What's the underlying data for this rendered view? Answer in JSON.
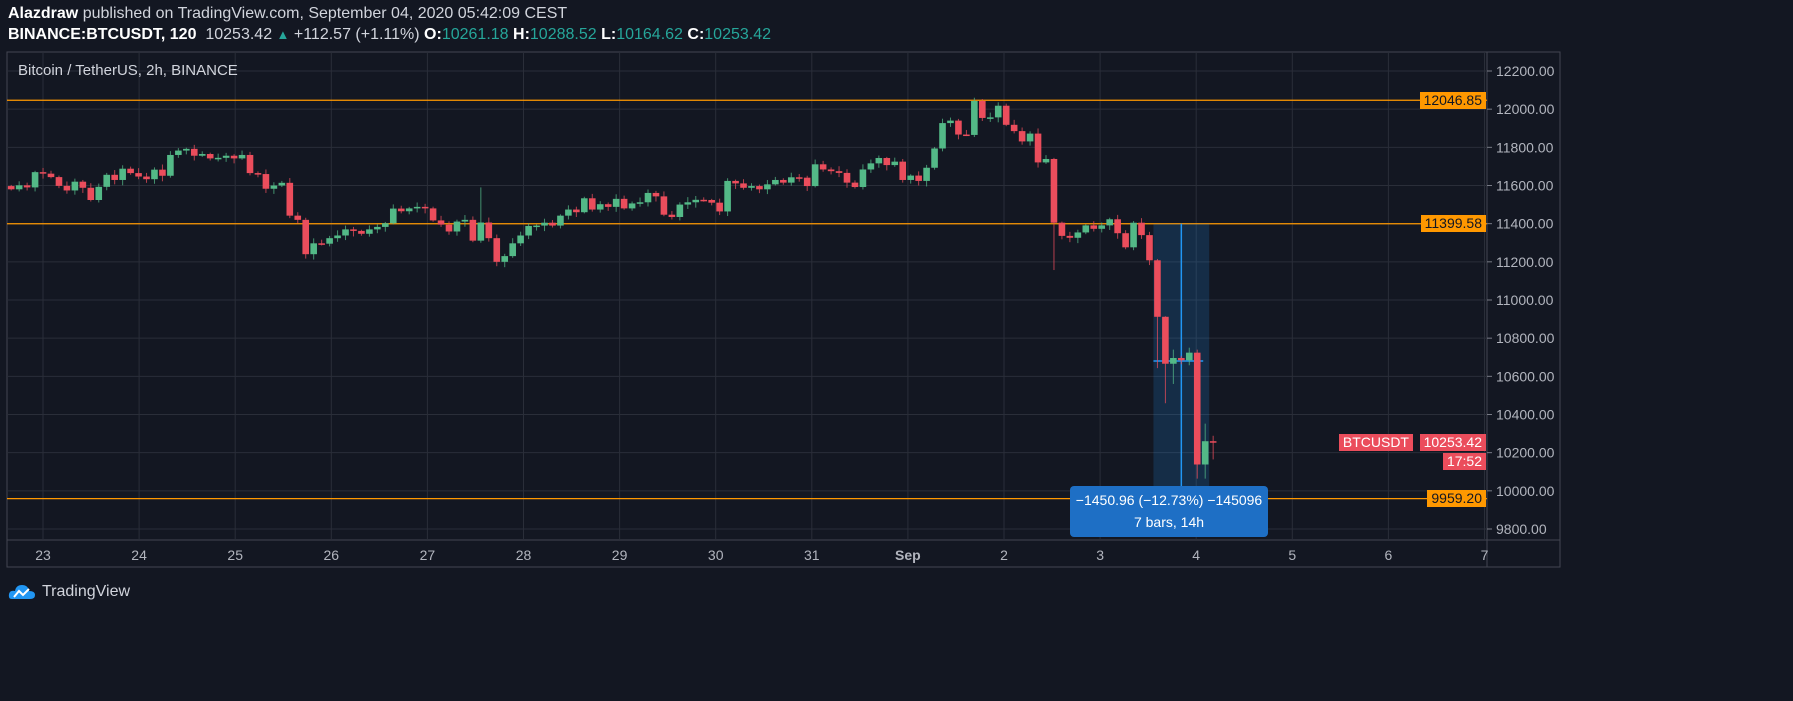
{
  "header": {
    "author": "Alazdraw",
    "published_text": "published on TradingView.com, September 04, 2020 05:42:09 CEST",
    "symbol": "BINANCE:BTCUSDT, 120",
    "last": "10253.42",
    "change": "+112.57 (+1.11%)",
    "o_label": "O:",
    "o_value": "10261.18",
    "h_label": "H:",
    "h_value": "10288.52",
    "l_label": "L:",
    "l_value": "10164.62",
    "c_label": "C:",
    "c_value": "10253.42"
  },
  "pane_title": "Bitcoin / TetherUS, 2h, BINANCE",
  "footer": {
    "brand": "TradingView"
  },
  "colors": {
    "up": "#53b987",
    "down": "#eb4d5c",
    "level": "#ff9800",
    "measure": "#2196f3",
    "grid": "#2a2e39",
    "bg": "#131722"
  },
  "chart_data": {
    "type": "candlestick",
    "title": "Bitcoin / TetherUS, 2h, BINANCE",
    "interval": "2h",
    "first_open": 11597,
    "closes": [
      11580,
      11601,
      11590,
      11670,
      11662,
      11644,
      11598,
      11574,
      11620,
      11588,
      11524,
      11593,
      11656,
      11629,
      11688,
      11665,
      11647,
      11633,
      11683,
      11651,
      11760,
      11783,
      11792,
      11756,
      11765,
      11742,
      11745,
      11756,
      11742,
      11760,
      11665,
      11660,
      11583,
      11600,
      11614,
      11442,
      11420,
      11240,
      11297,
      11295,
      11324,
      11338,
      11370,
      11362,
      11347,
      11370,
      11383,
      11402,
      11479,
      11465,
      11480,
      11488,
      11480,
      11417,
      11395,
      11359,
      11411,
      11420,
      11311,
      11406,
      11324,
      11200,
      11230,
      11297,
      11338,
      11388,
      11390,
      11405,
      11390,
      11442,
      11474,
      11460,
      11533,
      11474,
      11502,
      11488,
      11530,
      11480,
      11506,
      11512,
      11561,
      11543,
      11447,
      11435,
      11500,
      11512,
      11525,
      11524,
      11510,
      11464,
      11624,
      11611,
      11588,
      11597,
      11580,
      11606,
      11629,
      11615,
      11643,
      11641,
      11597,
      11711,
      11684,
      11675,
      11666,
      11615,
      11592,
      11684,
      11716,
      11744,
      11707,
      11725,
      11629,
      11652,
      11624,
      11693,
      11794,
      11927,
      11940,
      11867,
      11865,
      12043,
      11954,
      11957,
      12018,
      11918,
      11885,
      11831,
      11872,
      11721,
      11739,
      11405,
      11336,
      11326,
      11354,
      11391,
      11373,
      11391,
      11423,
      11350,
      11276,
      11405,
      11340,
      11208,
      10912,
      10666,
      10696,
      10684,
      10724,
      10138,
      10260,
      10253.42
    ],
    "wick_overrides": {
      "59": [
        11590,
        11300
      ],
      "131": [
        11745,
        11157
      ],
      "144": [
        11215,
        10643
      ],
      "145": [
        10915,
        10459
      ],
      "146": [
        10740,
        10560
      ],
      "149": [
        10740,
        10064
      ],
      "150": [
        10352,
        10064
      ],
      "151": [
        10288.52,
        10164.62
      ]
    },
    "x_ticks": [
      "23",
      "24",
      "25",
      "26",
      "27",
      "28",
      "29",
      "30",
      "31",
      "Sep",
      "2",
      "3",
      "4",
      "5",
      "6",
      "7"
    ],
    "y_ticks": [
      "12200.00",
      "12000.00",
      "11800.00",
      "11600.00",
      "11400.00",
      "11200.00",
      "11000.00",
      "10800.00",
      "10600.00",
      "10400.00",
      "10200.00",
      "10000.00",
      "9800.00"
    ],
    "ylim": [
      9740,
      12290
    ],
    "horizontal_levels": [
      {
        "price": 12046.85,
        "label": "12046.85"
      },
      {
        "price": 11399.58,
        "label": "11399.58"
      },
      {
        "price": 9959.2,
        "label": "9959.20"
      }
    ],
    "last_price": {
      "symbol": "BTCUSDT",
      "value": "10253.42",
      "countdown": "17:52"
    },
    "measure": {
      "from_bar": 144,
      "to_bar": 150,
      "top": 11399.58,
      "bottom": 9948.62,
      "mid": 10680,
      "line1": "−1450.96 (−12.73%) −145096",
      "line2": "7 bars, 14h"
    }
  }
}
